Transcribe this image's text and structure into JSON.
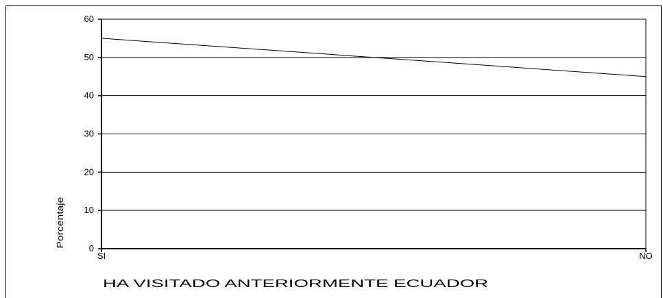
{
  "chart_data": {
    "type": "line",
    "categories": [
      "SI",
      "NO"
    ],
    "series": [
      {
        "values": [
          55,
          45
        ],
        "color": "#000000"
      }
    ],
    "xlabel": "HA VISITADO ANTERIORMENTE ECUADOR",
    "ylabel": "Porcentaje",
    "ylim": [
      0,
      60
    ],
    "yticks": [
      0,
      10,
      20,
      30,
      40,
      50,
      60
    ],
    "grid": true,
    "legend": "none"
  }
}
